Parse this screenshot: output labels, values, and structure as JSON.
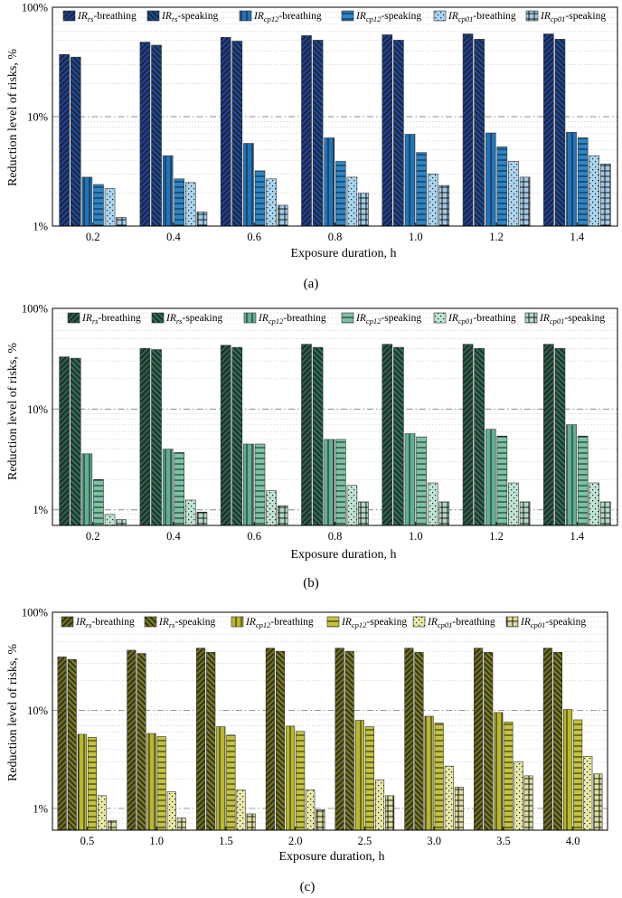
{
  "chart_data": [
    {
      "type": "bar",
      "caption": "(a)",
      "xlabel": "Exposure duration, h",
      "ylabel": "Reduction level of risks, %",
      "yscale": "log",
      "ylim": [
        1,
        100
      ],
      "yticks": [
        "1%",
        "10%",
        "100%"
      ],
      "categories": [
        "0.2",
        "0.4",
        "0.6",
        "0.8",
        "1.0",
        "1.2",
        "1.4"
      ],
      "palette": [
        "#1e3f8f",
        "#1c4790",
        "#1f74bb",
        "#2a86c9",
        "#a9d4ee",
        "#a0cbe6"
      ],
      "series": [
        {
          "name_main": "IR",
          "name_sub": "rs",
          "name_suffix": "-breathing",
          "pattern": "diag-r",
          "values": [
            37,
            48,
            53,
            55,
            56,
            57,
            57
          ]
        },
        {
          "name_main": "IR",
          "name_sub": "rs",
          "name_suffix": "-speaking",
          "pattern": "diag-l",
          "values": [
            35,
            45,
            49,
            50,
            50,
            51,
            51
          ]
        },
        {
          "name_main": "IR",
          "name_sub": "cp12",
          "name_suffix": "-breathing",
          "pattern": "vert",
          "values": [
            2.8,
            4.4,
            5.7,
            6.4,
            6.9,
            7.1,
            7.2
          ]
        },
        {
          "name_main": "IR",
          "name_sub": "cp12",
          "name_suffix": "-speaking",
          "pattern": "horiz",
          "values": [
            2.4,
            2.7,
            3.2,
            3.9,
            4.7,
            5.3,
            6.4
          ]
        },
        {
          "name_main": "IR",
          "name_sub": "cp01",
          "name_suffix": "-breathing",
          "pattern": "dots",
          "values": [
            2.2,
            2.5,
            2.7,
            2.8,
            3.0,
            3.9,
            4.4
          ]
        },
        {
          "name_main": "IR",
          "name_sub": "cp01",
          "name_suffix": "-speaking",
          "pattern": "grid",
          "values": [
            1.2,
            1.35,
            1.55,
            2.0,
            2.35,
            2.8,
            3.7
          ]
        }
      ]
    },
    {
      "type": "bar",
      "caption": "(b)",
      "xlabel": "Exposure duration, h",
      "ylabel": "Reduction level of risks, %",
      "yscale": "log",
      "ylim": [
        0.7,
        100
      ],
      "yticks": [
        "1%",
        "10%",
        "100%"
      ],
      "categories": [
        "0.2",
        "0.4",
        "0.6",
        "0.8",
        "1.0",
        "1.2",
        "1.4"
      ],
      "palette": [
        "#2a5c48",
        "#2c6a52",
        "#5fb092",
        "#7ac4a5",
        "#bfe3d2",
        "#b2d9c6"
      ],
      "series": [
        {
          "name_main": "IR",
          "name_sub": "rs",
          "name_suffix": "-breathing",
          "pattern": "diag-r",
          "values": [
            33,
            40,
            43,
            44,
            44,
            44,
            44
          ]
        },
        {
          "name_main": "IR",
          "name_sub": "rs",
          "name_suffix": "-speaking",
          "pattern": "diag-l",
          "values": [
            32,
            39,
            41,
            41,
            41,
            40,
            40
          ]
        },
        {
          "name_main": "IR",
          "name_sub": "cp12",
          "name_suffix": "-breathing",
          "pattern": "vert",
          "values": [
            3.6,
            4.0,
            4.5,
            5.0,
            5.7,
            6.3,
            7.0
          ]
        },
        {
          "name_main": "IR",
          "name_sub": "cp12",
          "name_suffix": "-speaking",
          "pattern": "horiz",
          "values": [
            2.0,
            3.7,
            4.5,
            5.0,
            5.3,
            5.4,
            5.4
          ]
        },
        {
          "name_main": "IR",
          "name_sub": "cp01",
          "name_suffix": "-breathing",
          "pattern": "dots",
          "values": [
            0.9,
            1.25,
            1.55,
            1.75,
            1.85,
            1.85,
            1.85
          ]
        },
        {
          "name_main": "IR",
          "name_sub": "cp01",
          "name_suffix": "-speaking",
          "pattern": "grid",
          "values": [
            0.8,
            0.95,
            1.1,
            1.2,
            1.2,
            1.2,
            1.2
          ]
        }
      ]
    },
    {
      "type": "bar",
      "caption": "(c)",
      "xlabel": "Exposure duration, h",
      "ylabel": "Reduction level of risks, %",
      "yscale": "log",
      "ylim": [
        0.6,
        100
      ],
      "yticks": [
        "1%",
        "10%",
        "100%"
      ],
      "categories": [
        "0.5",
        "1.0",
        "1.5",
        "2.0",
        "2.5",
        "3.0",
        "3.5",
        "4.0"
      ],
      "palette": [
        "#6b6b1c",
        "#77771f",
        "#b8b82a",
        "#c4c438",
        "#e9e9a6",
        "#dede9c"
      ],
      "series": [
        {
          "name_main": "IR",
          "name_sub": "rs",
          "name_suffix": "-breathing",
          "pattern": "diag-r",
          "values": [
            35,
            41,
            43,
            43,
            43,
            43,
            43,
            43
          ]
        },
        {
          "name_main": "IR",
          "name_sub": "rs",
          "name_suffix": "-speaking",
          "pattern": "diag-l",
          "values": [
            33,
            38,
            39,
            40,
            40,
            39,
            39,
            39
          ]
        },
        {
          "name_main": "IR",
          "name_sub": "cp12",
          "name_suffix": "-breathing",
          "pattern": "vert",
          "values": [
            5.7,
            5.8,
            6.8,
            6.9,
            7.9,
            8.7,
            9.5,
            10.2
          ]
        },
        {
          "name_main": "IR",
          "name_sub": "cp12",
          "name_suffix": "-speaking",
          "pattern": "horiz",
          "values": [
            5.3,
            5.4,
            5.6,
            6.1,
            6.8,
            7.4,
            7.6,
            8.0
          ]
        },
        {
          "name_main": "IR",
          "name_sub": "cp01",
          "name_suffix": "-breathing",
          "pattern": "dots",
          "values": [
            1.35,
            1.48,
            1.55,
            1.55,
            1.95,
            2.7,
            3.0,
            3.4
          ]
        },
        {
          "name_main": "IR",
          "name_sub": "cp01",
          "name_suffix": "-speaking",
          "pattern": "grid",
          "values": [
            0.75,
            0.8,
            0.88,
            0.97,
            1.35,
            1.65,
            2.15,
            2.25
          ]
        }
      ]
    }
  ]
}
